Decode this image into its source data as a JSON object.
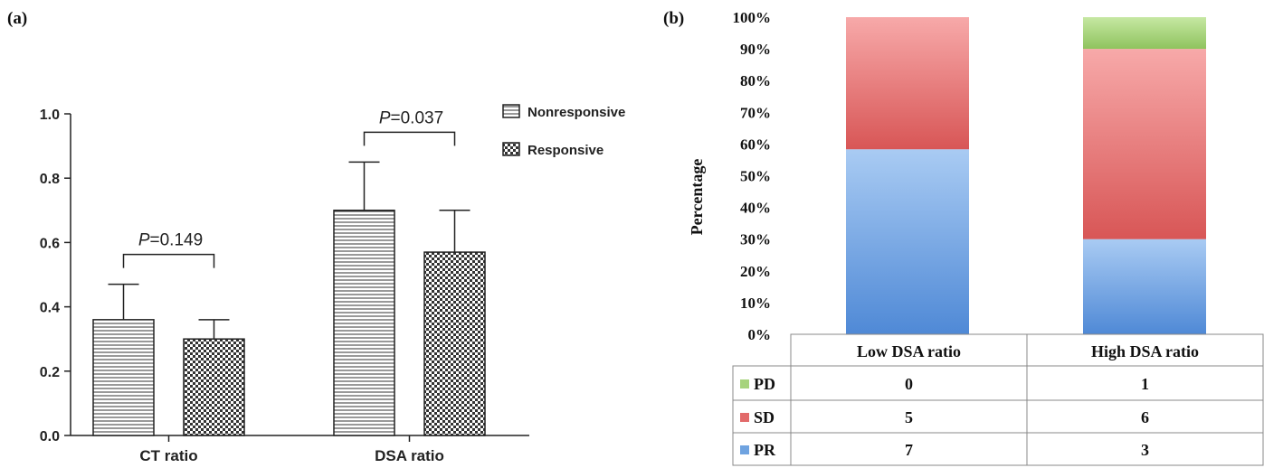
{
  "colors": {
    "bar_stroke": "#222222",
    "pd": "#a6d37c",
    "sd": "#e26a6a",
    "pr": "#6fa3e0"
  },
  "chart_data": [
    {
      "type": "bar",
      "panel_label": "(a)",
      "title": "",
      "xlabel": "",
      "ylabel": "",
      "ylim": [
        0,
        1.0
      ],
      "yticks": [
        "0.0",
        "0.2",
        "0.4",
        "0.6",
        "0.8",
        "1.0"
      ],
      "categories": [
        "CT ratio",
        "DSA ratio"
      ],
      "series": [
        {
          "name": "Nonresponsive",
          "pattern": "horizontal-lines",
          "values": [
            0.36,
            0.7
          ],
          "error": [
            0.11,
            0.15
          ]
        },
        {
          "name": "Responsive",
          "pattern": "checkered",
          "values": [
            0.3,
            0.57
          ],
          "error": [
            0.06,
            0.13
          ]
        }
      ],
      "annotations": [
        {
          "prefix": "P",
          "text": "=0.149",
          "category": "CT ratio"
        },
        {
          "prefix": "P",
          "text": "=0.037",
          "category": "DSA ratio"
        }
      ],
      "legend_position": "top-right",
      "grid": false
    },
    {
      "type": "bar",
      "stacked": true,
      "panel_label": "(b)",
      "title": "",
      "xlabel": "",
      "ylabel": "Percentage",
      "ylim": [
        0,
        100
      ],
      "yticks": [
        "0%",
        "10%",
        "20%",
        "30%",
        "40%",
        "50%",
        "60%",
        "70%",
        "80%",
        "90%",
        "100%"
      ],
      "categories": [
        "Low DSA ratio",
        "High DSA ratio"
      ],
      "series": [
        {
          "name": "PR",
          "values": [
            7,
            3
          ]
        },
        {
          "name": "SD",
          "values": [
            5,
            6
          ]
        },
        {
          "name": "PD",
          "values": [
            0,
            1
          ]
        }
      ],
      "table_rows": [
        {
          "name": "PD",
          "values": [
            "0",
            "1"
          ]
        },
        {
          "name": "SD",
          "values": [
            "5",
            "6"
          ]
        },
        {
          "name": "PR",
          "values": [
            "7",
            "3"
          ]
        }
      ],
      "grid": false
    }
  ]
}
